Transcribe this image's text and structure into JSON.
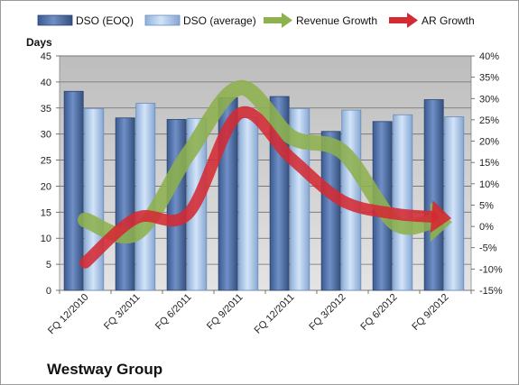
{
  "chart_data": {
    "type": "bar",
    "title": "",
    "company": "Westway Group",
    "ylabel": "Days",
    "categories": [
      "FQ 12/2010",
      "FQ 3/2011",
      "FQ 6/2011",
      "FQ 9/2011",
      "FQ 12/2011",
      "FQ 3/2012",
      "FQ 6/2012",
      "FQ 9/2012"
    ],
    "ylim": [
      0,
      45
    ],
    "yticks": [
      0,
      5,
      10,
      15,
      20,
      25,
      30,
      35,
      40,
      45
    ],
    "y2lim": [
      -15,
      40
    ],
    "y2ticks": [
      -15,
      -10,
      -5,
      0,
      5,
      10,
      15,
      20,
      25,
      30,
      35,
      40
    ],
    "y2_unit": "%",
    "grid": true,
    "legend_position": "top",
    "series": [
      {
        "name": "DSO (EOQ)",
        "kind": "bar",
        "axis": "left",
        "color": "#4f6fa8",
        "values": [
          38.2,
          33.1,
          32.8,
          37.0,
          37.2,
          30.5,
          32.4,
          36.6
        ]
      },
      {
        "name": "DSO (average)",
        "kind": "bar",
        "axis": "left",
        "color": "#a9c6ea",
        "values": [
          34.9,
          35.9,
          33.0,
          33.2,
          34.9,
          34.6,
          33.7,
          33.3
        ]
      },
      {
        "name": "Revenue Growth",
        "kind": "arrow-line",
        "axis": "right",
        "color": "#8db14d",
        "values": [
          1.5,
          -1.5,
          17.0,
          32.5,
          21.0,
          17.5,
          1.0,
          1.0
        ]
      },
      {
        "name": "AR Growth",
        "kind": "arrow-line",
        "axis": "right",
        "color": "#d42a33",
        "values": [
          -8.5,
          2.0,
          3.0,
          26.5,
          16.0,
          6.0,
          3.0,
          2.0
        ]
      }
    ]
  }
}
